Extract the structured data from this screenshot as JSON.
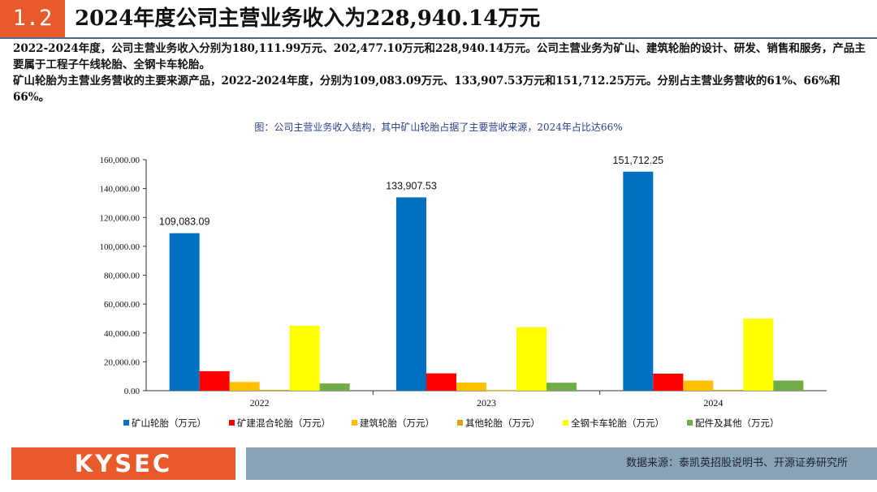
{
  "header": {
    "section_number": "1.2",
    "title": "2024年度公司主营业务收入为228,940.14万元"
  },
  "body": {
    "paragraph1": "2022-2024年度，公司主营业务收入分别为180,111.99万元、202,477.10万元和228,940.14万元。公司主营业务为矿山、建筑轮胎的设计、研发、销售和服务，产品主要属于工程子午线轮胎、全钢卡车轮胎。",
    "paragraph2": "矿山轮胎为主营业务营收的主要来源产品，2022-2024年度，分别为109,083.09万元、133,907.53万元和151,712.25万元。分别占主营业务营收的61%、66%和66%。"
  },
  "figure_caption": "图：公司主营业务收入结构，其中矿山轮胎占据了主要营收来源，2024年占比达66%",
  "chart_data": {
    "type": "bar",
    "categories": [
      "2022",
      "2023",
      "2024"
    ],
    "series": [
      {
        "name": "矿山轮胎（万元）",
        "color": "#0070c0",
        "values": [
          109083.09,
          133907.53,
          151712.25
        ],
        "data_labels": [
          "109,083.09",
          "133,907.53",
          "151,712.25"
        ]
      },
      {
        "name": "矿建混合轮胎（万元）",
        "color": "#ff0000",
        "values": [
          13500,
          12000,
          11800
        ]
      },
      {
        "name": "建筑轮胎（万元）",
        "color": "#ffc000",
        "values": [
          6000,
          5600,
          7000
        ]
      },
      {
        "name": "其他轮胎（万元）",
        "color": "#d9a400",
        "values": [
          500,
          400,
          500
        ]
      },
      {
        "name": "全钢卡车轮胎（万元）",
        "color": "#ffff00",
        "values": [
          45000,
          44000,
          50000
        ]
      },
      {
        "name": "配件及其他（万元）",
        "color": "#70ad47",
        "values": [
          5000,
          5500,
          7000
        ]
      }
    ],
    "ylim": [
      0,
      160000
    ],
    "y_ticks": [
      "0.00",
      "20,000.00",
      "40,000.00",
      "60,000.00",
      "80,000.00",
      "100,000.00",
      "120,000.00",
      "140,000.00",
      "160,000.00"
    ],
    "grid": false,
    "legend_position": "bottom"
  },
  "footer": {
    "logo": "KYSEC",
    "source": "数据来源：泰凯英招股说明书、开源证券研究所"
  }
}
